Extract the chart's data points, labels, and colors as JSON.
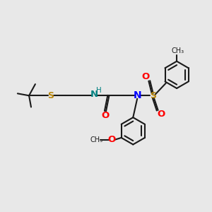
{
  "bg_color": "#e8e8e8",
  "bond_color": "#1a1a1a",
  "N_color": "#0000ff",
  "O_color": "#ff0000",
  "S_color": "#b8860b",
  "NH_color": "#008080",
  "lw": 1.5,
  "figsize": [
    3.0,
    3.0
  ],
  "dpi": 100,
  "xlim": [
    0,
    10
  ],
  "ylim": [
    0,
    10
  ]
}
